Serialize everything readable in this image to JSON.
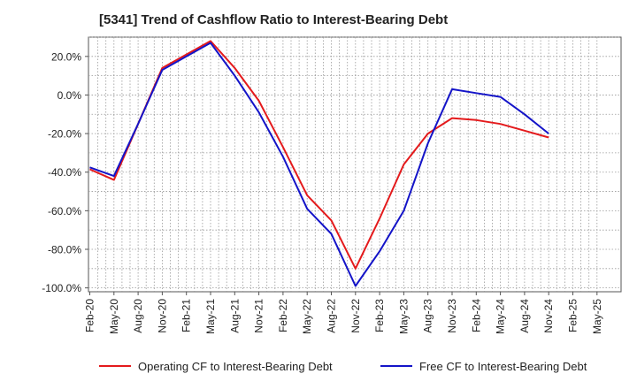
{
  "chart_data": {
    "type": "line",
    "title": "[5341]  Trend of Cashflow Ratio to Interest-Bearing Debt",
    "xlabel": "",
    "ylabel": "",
    "x_ticks": [
      "Feb-20",
      "May-20",
      "Aug-20",
      "Nov-20",
      "Feb-21",
      "May-21",
      "Aug-21",
      "Nov-21",
      "Feb-22",
      "May-22",
      "Aug-22",
      "Nov-22",
      "Feb-23",
      "May-23",
      "Aug-23",
      "Nov-23",
      "Feb-24",
      "May-24",
      "Aug-24",
      "Nov-24",
      "Feb-25",
      "May-25"
    ],
    "y_ticks": [
      "20.0%",
      "0.0%",
      "-20.0%",
      "-40.0%",
      "-60.0%",
      "-80.0%",
      "-100.0%"
    ],
    "y_tick_values": [
      20,
      0,
      -20,
      -40,
      -60,
      -80,
      -100
    ],
    "ylim": [
      -102,
      30
    ],
    "grid": true,
    "legend_position": "bottom",
    "series": [
      {
        "name": "Operating CF to Interest-Bearing Debt",
        "color": "#e41a1c",
        "x": [
          "Feb-20",
          "May-20",
          "Aug-20",
          "Nov-20",
          "Feb-21",
          "May-21",
          "Aug-21",
          "Nov-21",
          "Feb-22",
          "May-22",
          "Aug-22",
          "Nov-22",
          "Feb-23",
          "May-23",
          "Aug-23",
          "Nov-23",
          "Feb-24",
          "May-24",
          "Aug-24",
          "Nov-24"
        ],
        "values": [
          -38.5,
          -44,
          -15,
          14,
          21,
          28,
          14,
          -3,
          -27,
          -52,
          -65,
          -90,
          -64,
          -36,
          -20,
          -12,
          -13,
          -15,
          -18.5,
          -22
        ]
      },
      {
        "name": "Free CF to Interest-Bearing Debt",
        "color": "#1414c8",
        "x": [
          "Feb-20",
          "May-20",
          "Aug-20",
          "Nov-20",
          "Feb-21",
          "May-21",
          "Aug-21",
          "Nov-21",
          "Feb-22",
          "May-22",
          "Aug-22",
          "Nov-22",
          "Feb-23",
          "May-23",
          "Aug-23",
          "Nov-23",
          "Feb-24",
          "May-24",
          "Aug-24",
          "Nov-24"
        ],
        "values": [
          -37.5,
          -42,
          -15,
          13,
          20,
          27,
          10,
          -9,
          -32,
          -59,
          -72,
          -99,
          -81,
          -60,
          -25,
          3,
          1,
          -1,
          -10,
          -20
        ]
      }
    ]
  }
}
